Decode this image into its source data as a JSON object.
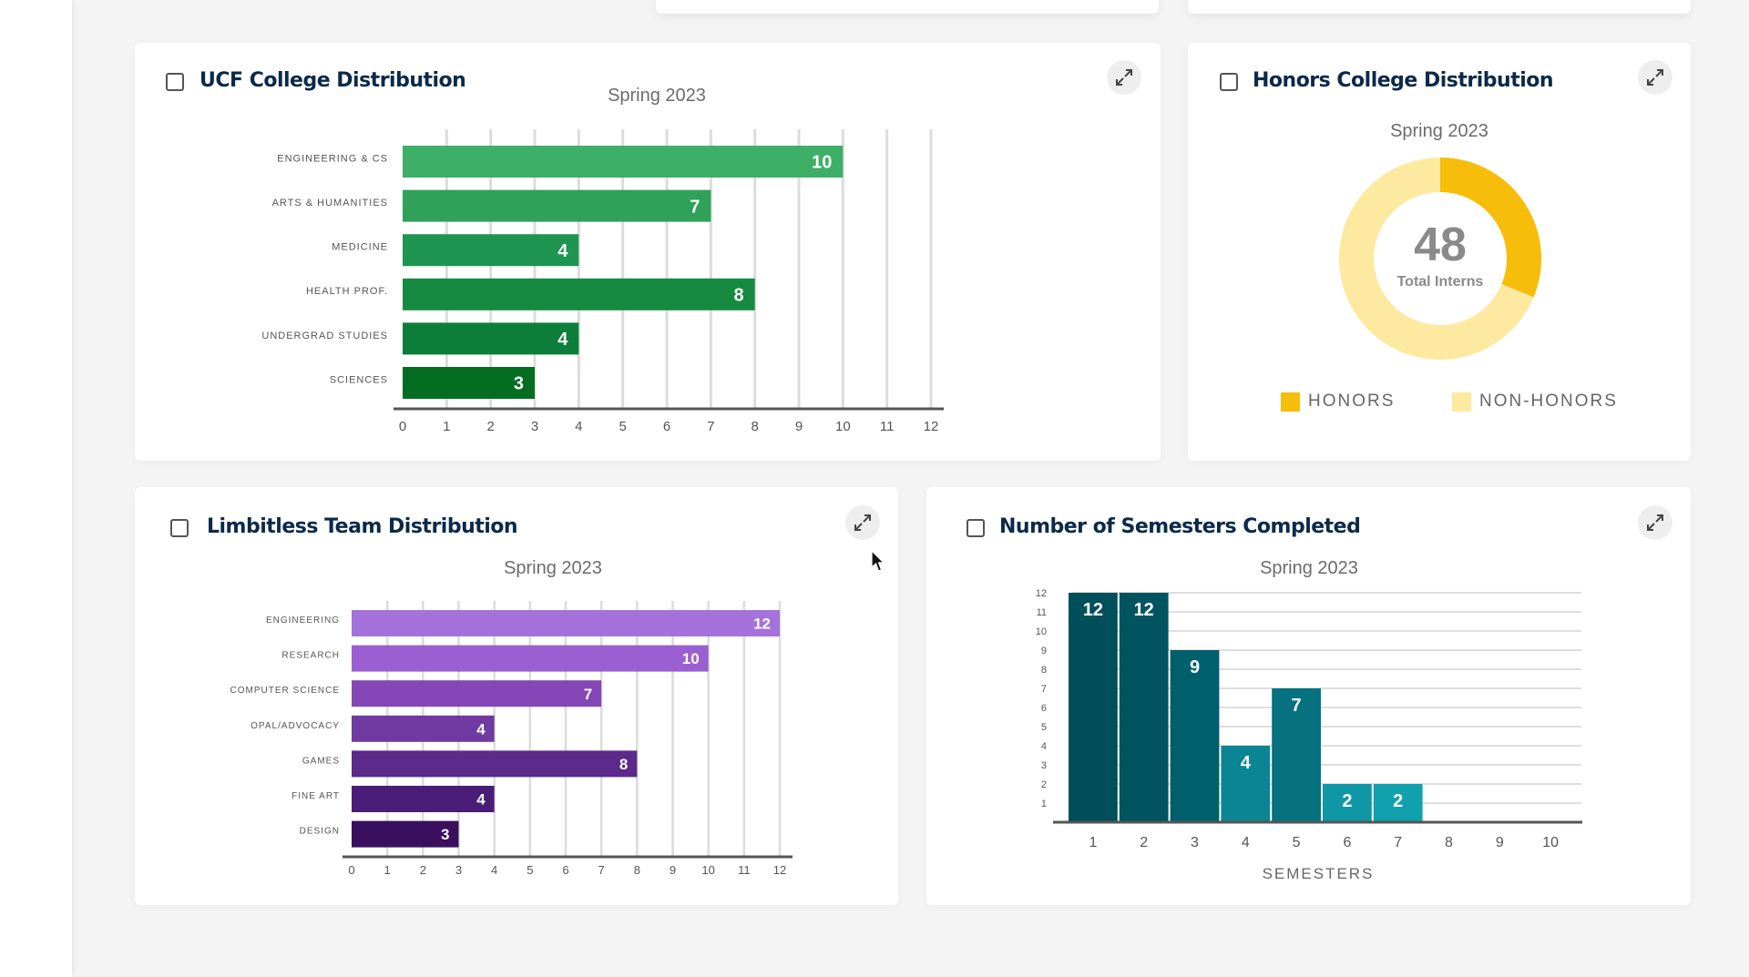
{
  "dashboard": {
    "ucf_college": {
      "title": "UCF College Distribution",
      "chart_data": {
        "type": "bar",
        "orientation": "horizontal",
        "title": "Spring 2023",
        "categories": [
          "ENGINEERING & CS",
          "ARTS & HUMANITIES",
          "MEDICINE",
          "HEALTH PROF.",
          "UNDERGRAD STUDIES",
          "SCIENCES"
        ],
        "values": [
          10,
          7,
          4,
          8,
          4,
          3
        ],
        "xlim": [
          0,
          12
        ],
        "ticks": [
          "0",
          "1",
          "2",
          "3",
          "4",
          "5",
          "6",
          "7",
          "8",
          "9",
          "10",
          "11",
          "12"
        ],
        "grid": true,
        "colors": [
          "#3daf66",
          "#2fa159",
          "#1e9550",
          "#178a42",
          "#0d7e39",
          "#046d22"
        ]
      }
    },
    "honors_college": {
      "title": "Honors College Distribution",
      "chart_data": {
        "type": "pie",
        "donut": true,
        "title": "Spring 2023",
        "center_value": "48",
        "center_label": "Total Interns",
        "labels": [
          "HONORS",
          "NON-HONORS"
        ],
        "values": [
          15,
          33
        ],
        "colors": [
          "#f7bd0b",
          "#fde9a0"
        ],
        "legend_position": "bottom"
      }
    },
    "limitless_team": {
      "title": "Limbitless Team Distribution",
      "chart_data": {
        "type": "bar",
        "orientation": "horizontal",
        "title": "Spring 2023",
        "categories": [
          "ENGINEERING",
          "RESEARCH",
          "COMPUTER SCIENCE",
          "OPAL/ADVOCACY",
          "GAMES",
          "FINE ART",
          "DESIGN"
        ],
        "values": [
          12,
          10,
          7,
          4,
          8,
          4,
          3
        ],
        "xlim": [
          0,
          12
        ],
        "ticks": [
          "0",
          "1",
          "2",
          "3",
          "4",
          "5",
          "6",
          "7",
          "8",
          "9",
          "10",
          "11",
          "12"
        ],
        "grid": true,
        "colors": [
          "#a572dc",
          "#9a5fd1",
          "#8447b5",
          "#6f3aa2",
          "#5b2a8a",
          "#4a1e78",
          "#3a0f5e"
        ]
      }
    },
    "semesters": {
      "title": "Number of Semesters Completed",
      "chart_data": {
        "type": "bar",
        "orientation": "vertical",
        "title": "Spring 2023",
        "xlabel": "SEMESTERS",
        "categories": [
          "1",
          "2",
          "3",
          "4",
          "5",
          "6",
          "7",
          "8",
          "9",
          "10"
        ],
        "values": [
          12,
          12,
          9,
          4,
          7,
          2,
          2,
          null,
          null,
          null
        ],
        "ylim": [
          0,
          12
        ],
        "yticks": [
          "1",
          "2",
          "3",
          "4",
          "5",
          "6",
          "7",
          "8",
          "9",
          "10",
          "11",
          "12"
        ],
        "grid": true,
        "colors": [
          "#004f5b",
          "#00545f",
          "#005f6c",
          "#0b8593",
          "#07727f",
          "#0f97a5",
          "#11a1ae"
        ]
      }
    }
  },
  "icons": {
    "expand": "expand-arrows-icon",
    "cursor": "mouse-pointer-icon"
  }
}
